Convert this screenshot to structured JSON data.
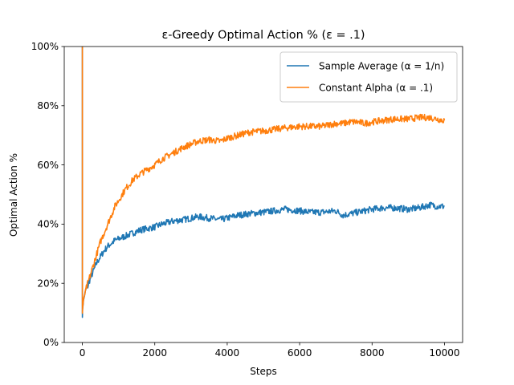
{
  "chart_data": {
    "type": "line",
    "title": "ε-Greedy Optimal Action % (ε = .1)",
    "xlabel": "Steps",
    "ylabel": "Optimal Action %",
    "xlim": [
      -500,
      10500
    ],
    "ylim": [
      0,
      100
    ],
    "x_ticks": [
      0,
      2000,
      4000,
      6000,
      8000,
      10000
    ],
    "y_ticks": [
      0,
      20,
      40,
      60,
      80,
      100
    ],
    "y_tick_format": "percent",
    "grid": false,
    "legend_position": "top-right",
    "series": [
      {
        "name": "Sample Average (α = 1/n)",
        "color": "#1f77b4",
        "x": [
          0,
          1,
          10,
          30,
          60,
          100,
          150,
          200,
          300,
          400,
          500,
          600,
          700,
          800,
          900,
          1000,
          1200,
          1400,
          1600,
          1800,
          2000,
          2200,
          2500,
          2800,
          3000,
          3200,
          3500,
          3800,
          4000,
          4300,
          4600,
          5000,
          5300,
          5600,
          6000,
          6300,
          6600,
          7000,
          7200,
          7400,
          7600,
          7800,
          8000,
          8300,
          8600,
          9000,
          9300,
          9600,
          9800,
          10000
        ],
        "values": [
          100,
          9,
          12,
          14,
          16,
          18,
          19,
          21,
          24,
          27,
          29,
          31,
          32.5,
          33.5,
          34.5,
          35,
          36,
          37,
          38,
          38.5,
          39,
          40,
          41,
          41.5,
          42,
          42.5,
          42,
          41.5,
          42,
          43,
          43.5,
          44,
          44.5,
          45,
          44.5,
          44,
          44,
          44.5,
          43,
          43.5,
          44,
          44.5,
          45,
          45.5,
          45.5,
          45,
          45.5,
          46.5,
          46,
          46
        ]
      },
      {
        "name": "Constant Alpha (α = .1)",
        "color": "#ff7f0e",
        "x": [
          0,
          1,
          10,
          30,
          60,
          100,
          150,
          200,
          300,
          400,
          500,
          600,
          700,
          800,
          900,
          1000,
          1200,
          1400,
          1600,
          1800,
          2000,
          2200,
          2500,
          2800,
          3000,
          3200,
          3500,
          3800,
          4000,
          4300,
          4600,
          5000,
          5300,
          5600,
          6000,
          6300,
          6600,
          7000,
          7200,
          7400,
          7600,
          7800,
          8000,
          8300,
          8600,
          9000,
          9300,
          9600,
          9800,
          10000
        ],
        "values": [
          100,
          10,
          12,
          14,
          16,
          18,
          20,
          22,
          26,
          30,
          34,
          37,
          40,
          43,
          46,
          48,
          52,
          55,
          57,
          58.5,
          60,
          62,
          64,
          66,
          67,
          68,
          68.5,
          68,
          69,
          70,
          71,
          71.5,
          72,
          72.5,
          73,
          73,
          73,
          74,
          74,
          74.5,
          74.5,
          74,
          74.5,
          75,
          75.5,
          75.5,
          76,
          76,
          75.5,
          75
        ]
      }
    ]
  }
}
